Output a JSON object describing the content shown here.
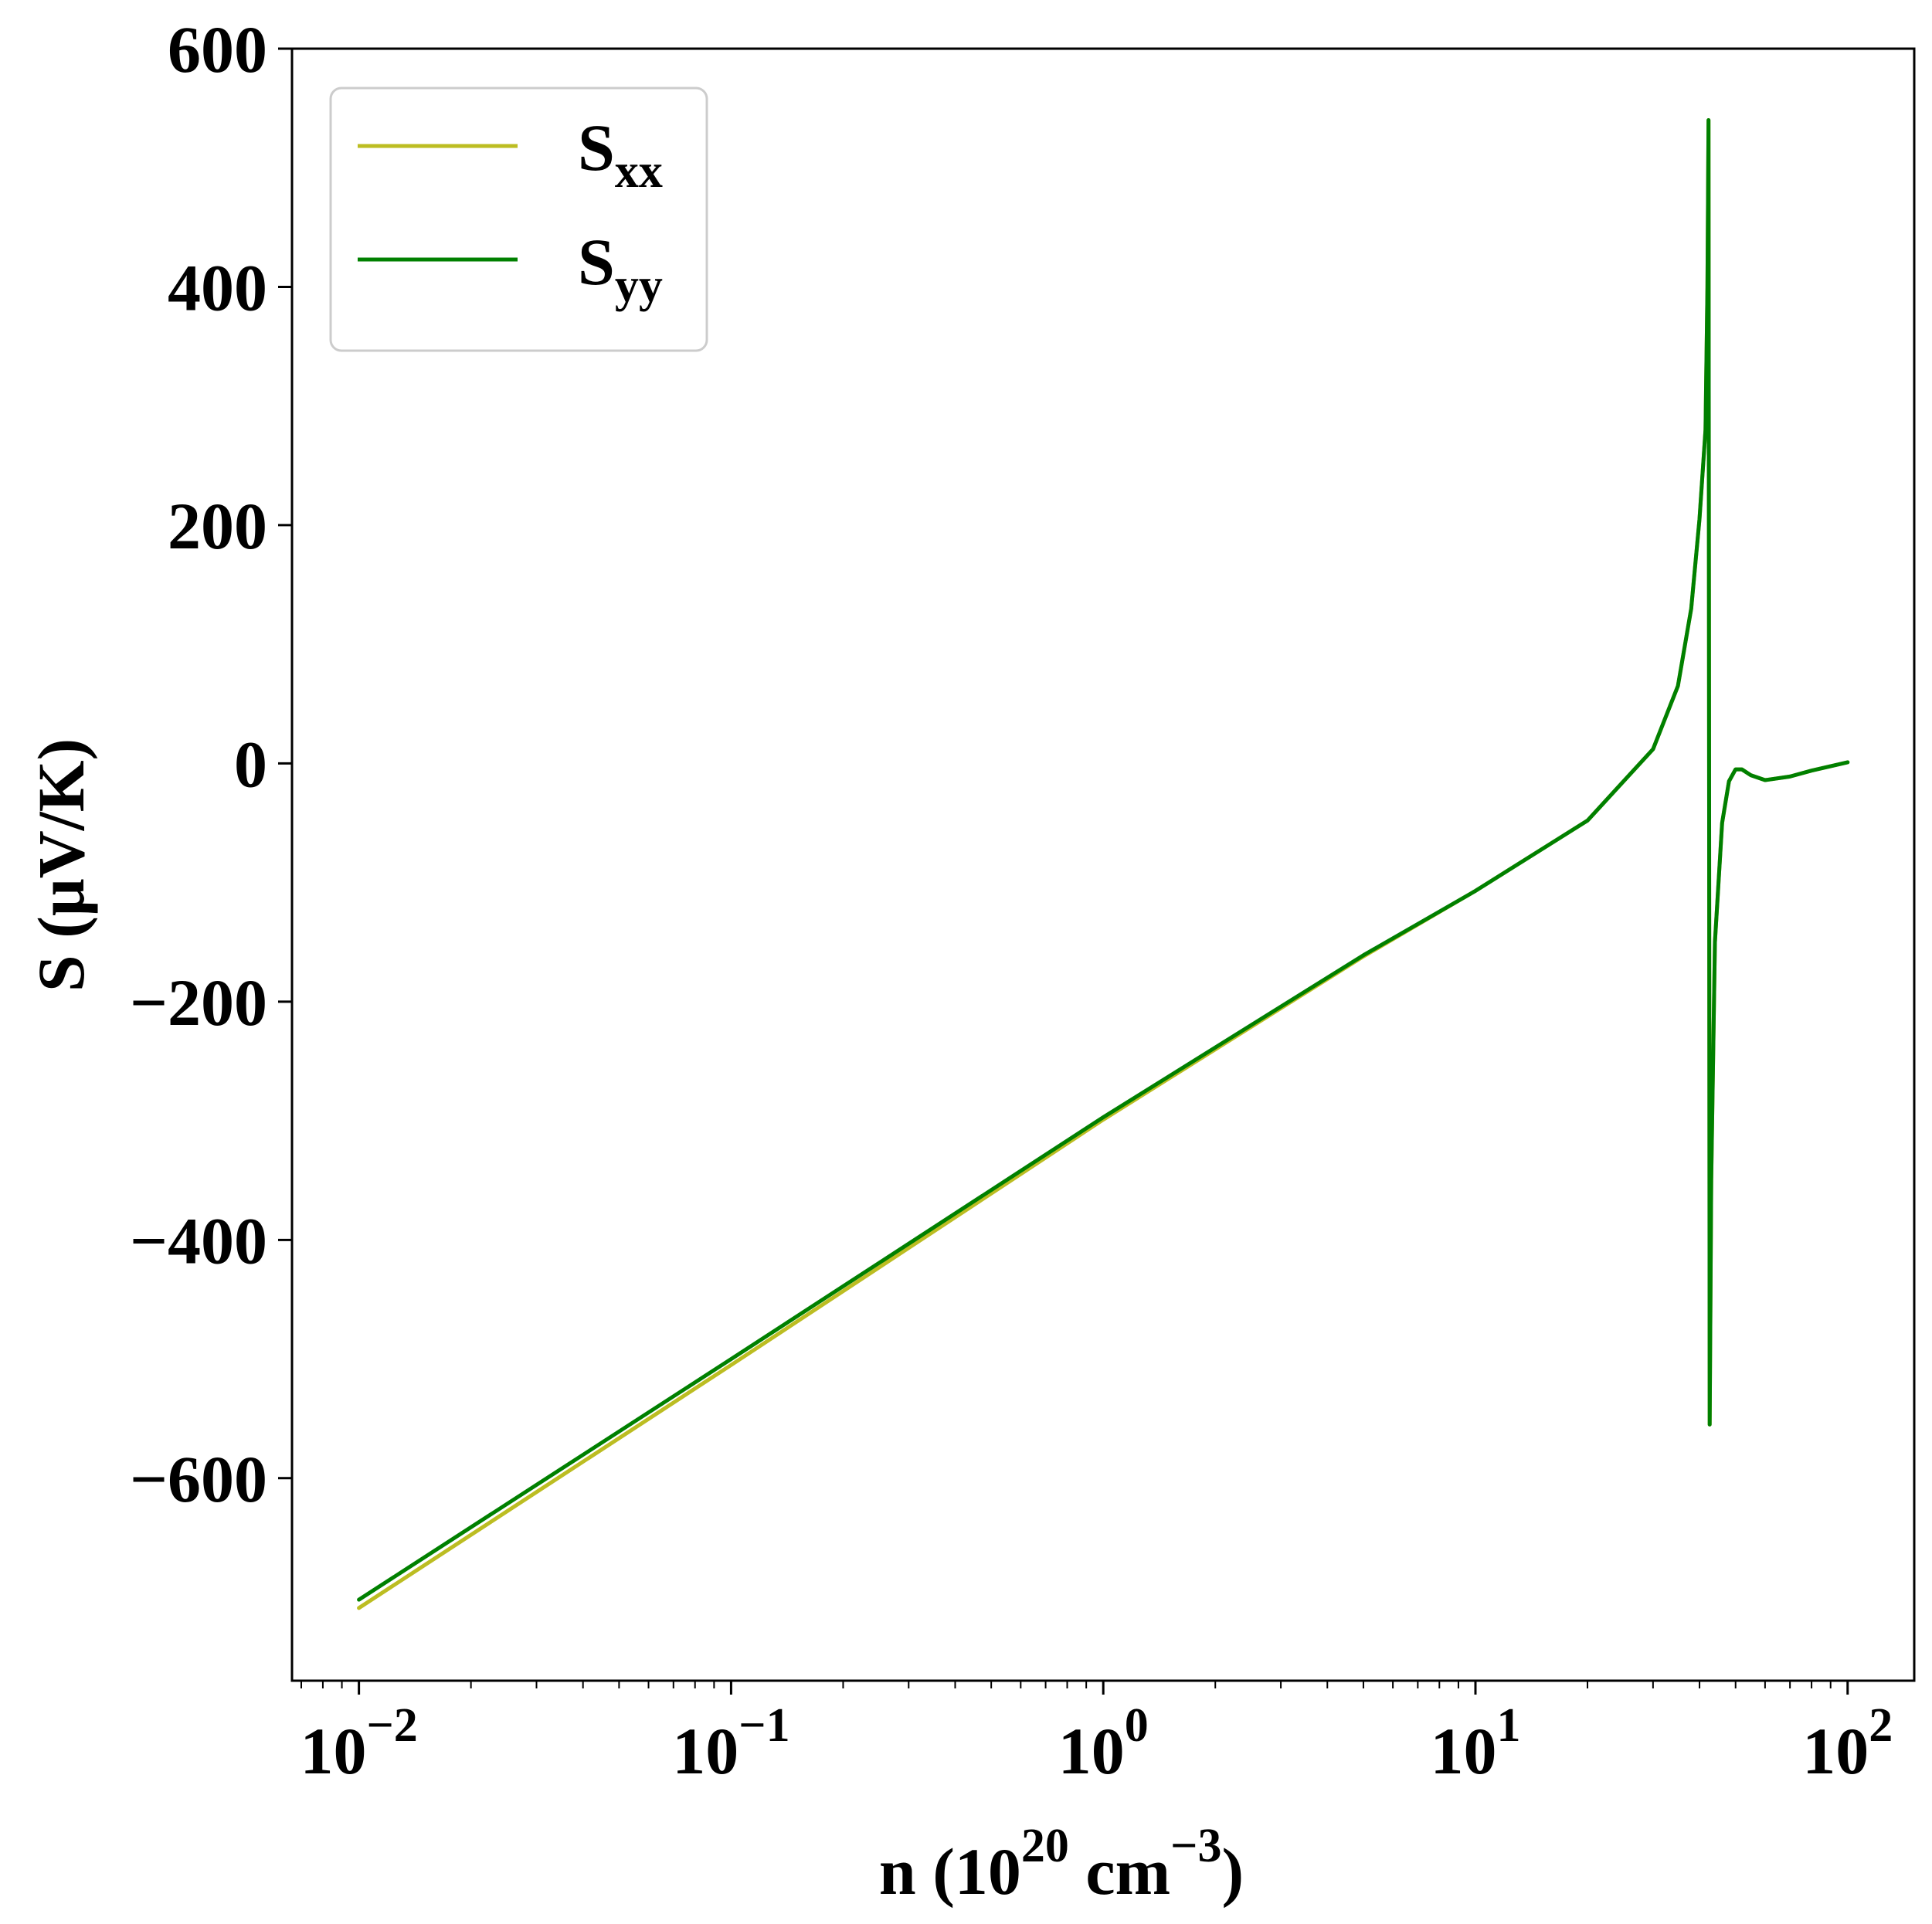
{
  "chart_data": {
    "type": "line",
    "title": "",
    "xlabel": {
      "main": "n (10",
      "exp": "20",
      "unit": " cm",
      "unit_exp": "−3",
      "close": ")"
    },
    "ylabel": "S (μV/K)",
    "xscale": "log",
    "xlim": [
      0.00661,
      151
    ],
    "ylim": [
      -770,
      600
    ],
    "xticks": [
      {
        "value": 0.01,
        "base": "10",
        "exp": "−2"
      },
      {
        "value": 0.1,
        "base": "10",
        "exp": "−1"
      },
      {
        "value": 1,
        "base": "10",
        "exp": "0"
      },
      {
        "value": 10,
        "base": "10",
        "exp": "1"
      },
      {
        "value": 100,
        "base": "10",
        "exp": "2"
      }
    ],
    "yticks": [
      {
        "value": 600,
        "label": "600"
      },
      {
        "value": 400,
        "label": "400"
      },
      {
        "value": 200,
        "label": "200"
      },
      {
        "value": 0,
        "label": "0"
      },
      {
        "value": -200,
        "label": "−200"
      },
      {
        "value": -400,
        "label": "−400"
      },
      {
        "value": -600,
        "label": "−600"
      }
    ],
    "grid": false,
    "legend_position": "top-left",
    "series": [
      {
        "name": "S",
        "subscript": "xx",
        "color": "#bcbd22",
        "x": [
          0.01,
          0.1,
          1,
          5,
          10,
          20,
          30,
          35,
          38,
          40,
          41.5,
          42,
          42.3,
          42.6,
          43,
          44,
          46,
          48,
          50,
          52,
          55,
          60,
          70,
          80,
          100
        ],
        "y": [
          -709,
          -505,
          -299,
          -162,
          -107,
          -48,
          12,
          65,
          130,
          205,
          280,
          400,
          540,
          -555,
          -350,
          -150,
          -50,
          -15,
          -5,
          -5,
          -10,
          -14,
          -11,
          -6,
          1
        ]
      },
      {
        "name": "S",
        "subscript": "yy",
        "color": "#008000",
        "x": [
          0.01,
          0.1,
          1,
          5,
          10,
          20,
          30,
          35,
          38,
          40,
          41.5,
          42,
          42.3,
          42.6,
          43,
          44,
          46,
          48,
          50,
          52,
          55,
          60,
          70,
          80,
          100
        ],
        "y": [
          -702,
          -500,
          -297,
          -161,
          -107,
          -48,
          12,
          65,
          130,
          205,
          280,
          400,
          540,
          -555,
          -350,
          -150,
          -50,
          -15,
          -5,
          -5,
          -10,
          -14,
          -11,
          -6,
          1
        ]
      }
    ]
  }
}
